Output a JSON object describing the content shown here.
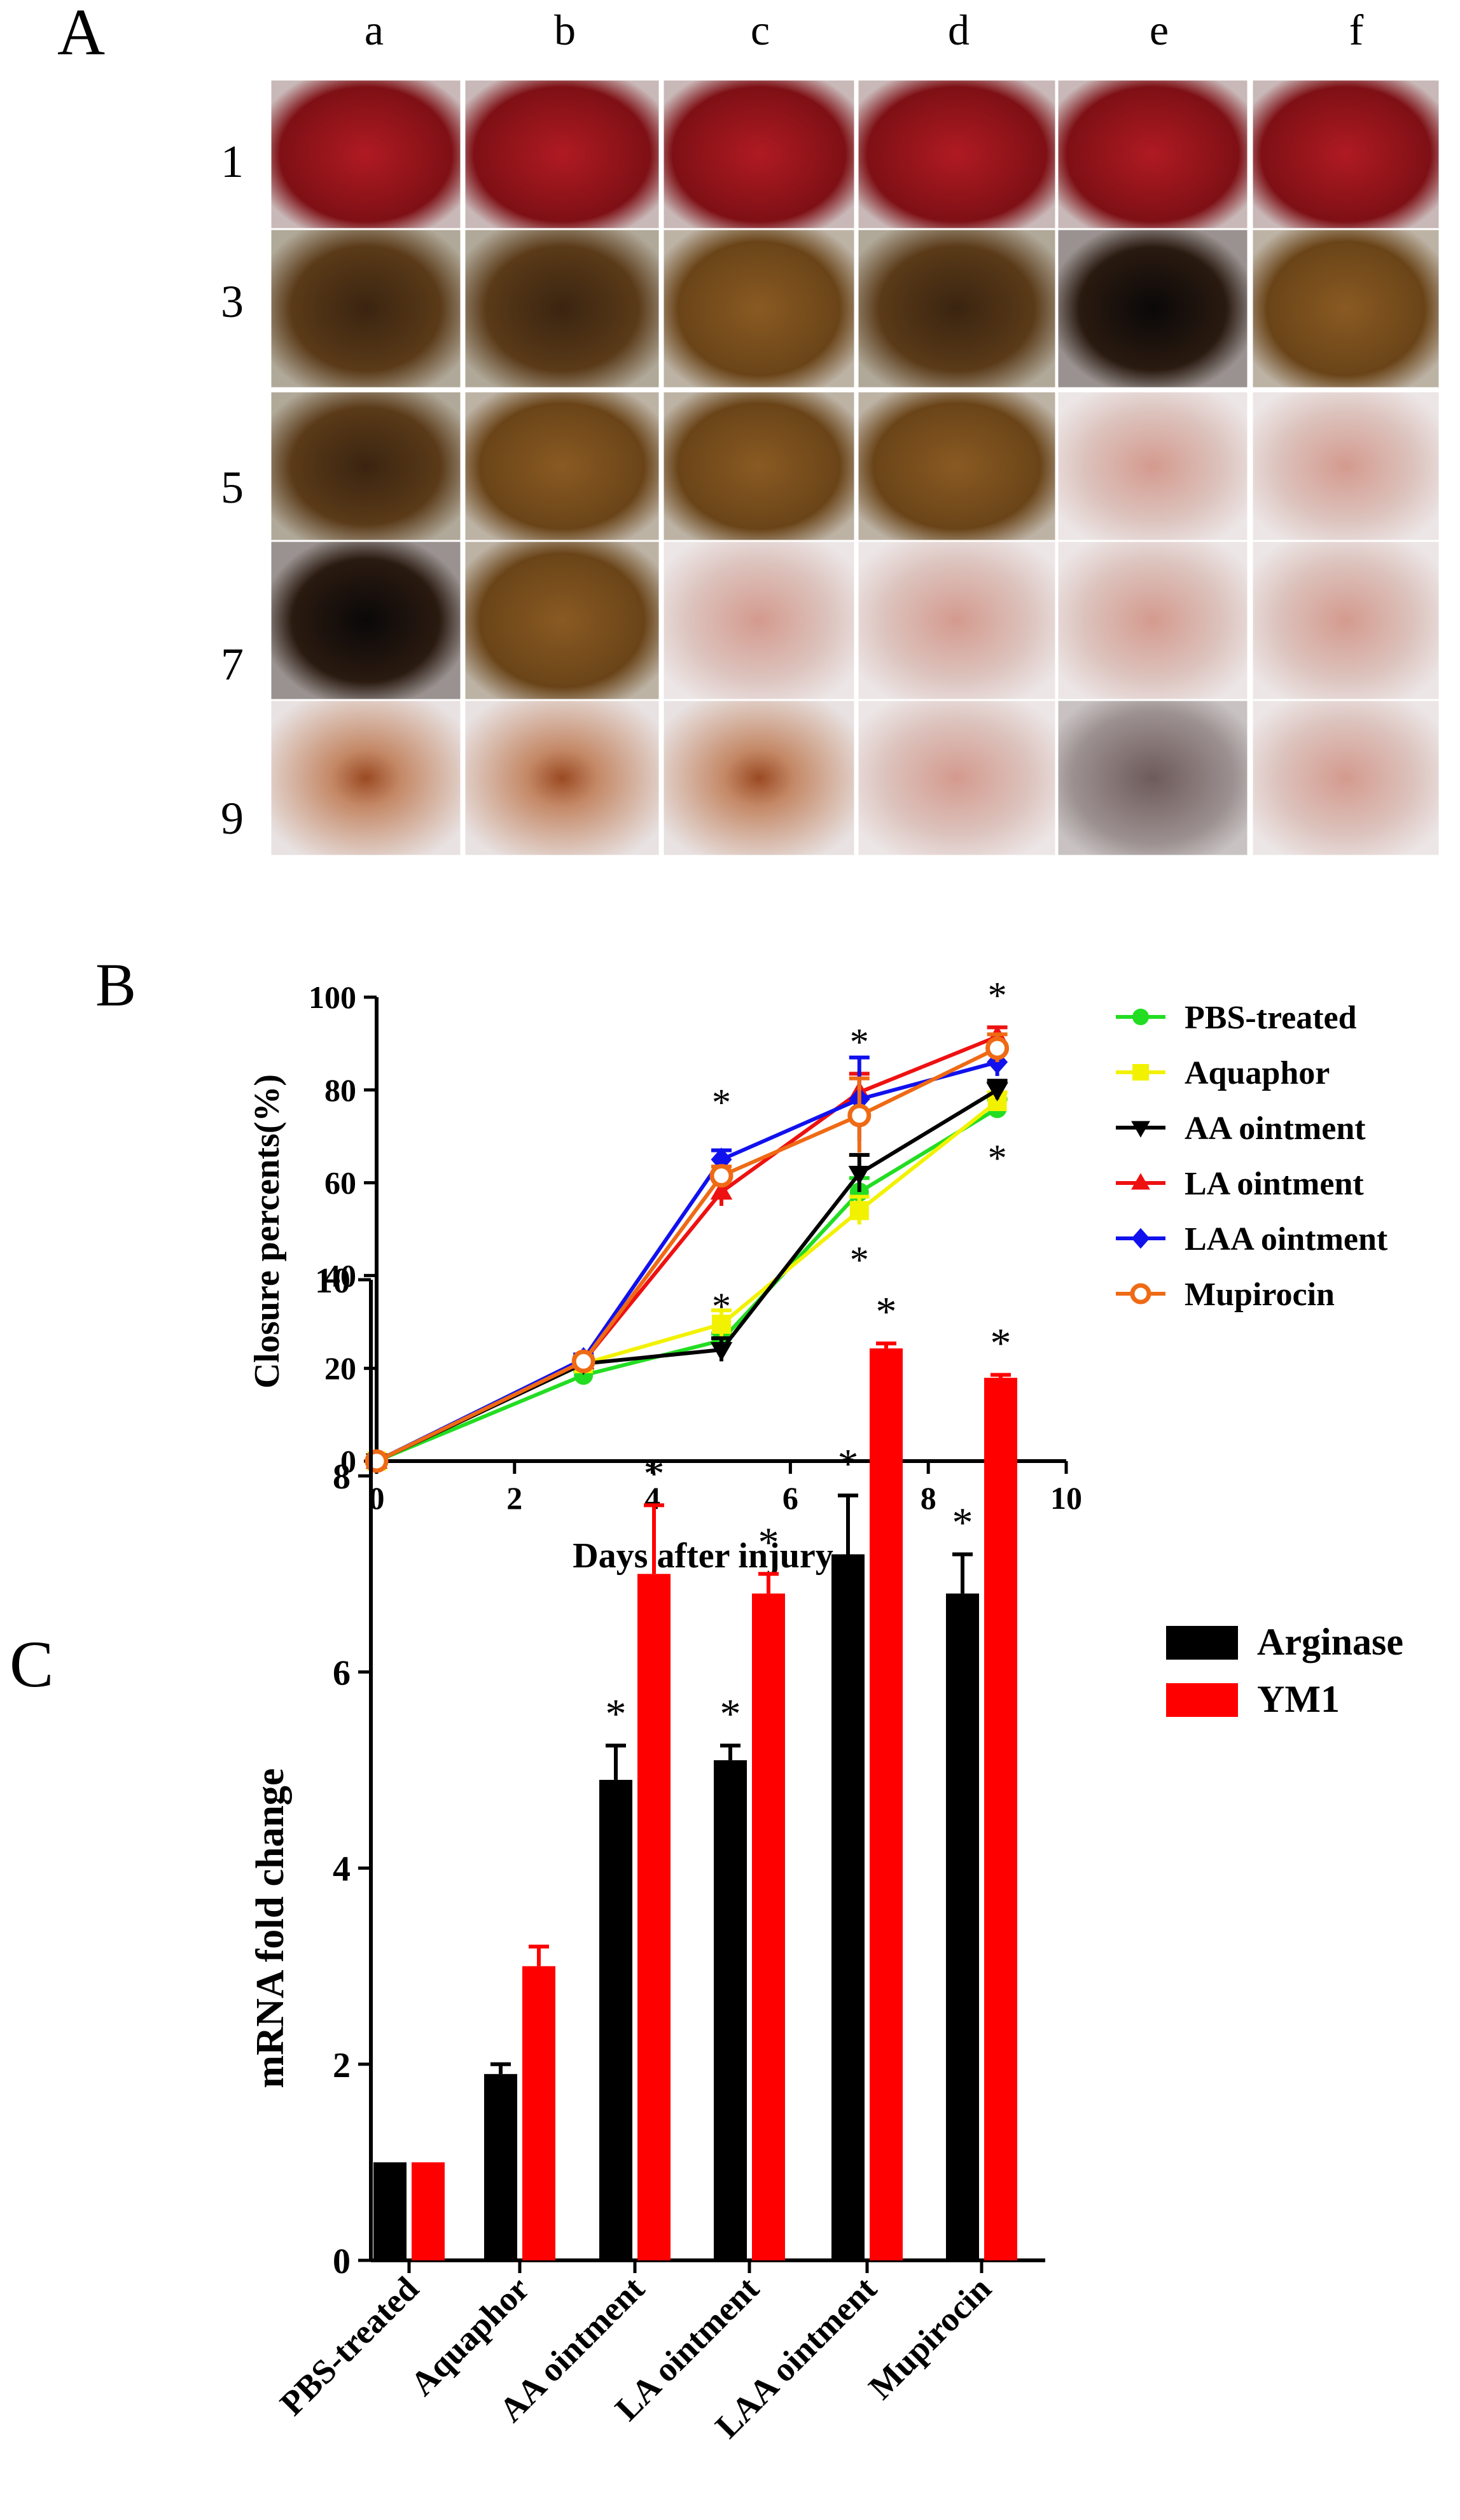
{
  "panel_a": {
    "label": "A",
    "columns": [
      "a",
      "b",
      "c",
      "d",
      "e",
      "f"
    ],
    "rows": [
      "1",
      "3",
      "5",
      "7",
      "9"
    ]
  },
  "chart_data": [
    {
      "panel": "B",
      "type": "line",
      "xlabel": "Days after injury",
      "ylabel": "Closure percents(%)",
      "xlim": [
        0,
        10
      ],
      "ylim": [
        0,
        100
      ],
      "xticks": [
        0,
        2,
        4,
        6,
        8,
        10
      ],
      "yticks": [
        0,
        20,
        40,
        60,
        80,
        100
      ],
      "x": [
        0,
        3,
        5,
        7,
        9
      ],
      "series": [
        {
          "name": "PBS-treated",
          "color": "#22dd22",
          "marker": "circle",
          "values": [
            0,
            18.5,
            26,
            58,
            76
          ],
          "errors": [
            0,
            1,
            1.5,
            3,
            2
          ]
        },
        {
          "name": "Aquaphor",
          "color": "#f2f200",
          "marker": "square",
          "values": [
            0,
            21,
            29.5,
            54,
            77.5
          ],
          "errors": [
            0,
            1,
            3,
            3,
            2
          ]
        },
        {
          "name": "AA ointment",
          "color": "#000000",
          "marker": "triangle-down",
          "values": [
            0,
            21,
            24,
            62,
            80
          ],
          "errors": [
            0,
            1,
            2.5,
            4,
            2
          ]
        },
        {
          "name": "LA ointment",
          "color": "#ee1111",
          "marker": "triangle-up",
          "values": [
            0,
            21.5,
            58,
            79.5,
            91.5
          ],
          "errors": [
            0,
            1,
            3,
            4,
            2
          ]
        },
        {
          "name": "LAA ointment",
          "color": "#1111ee",
          "marker": "diamond",
          "values": [
            0,
            22,
            65,
            78,
            86
          ],
          "errors": [
            0,
            1,
            2,
            9,
            3
          ]
        },
        {
          "name": "Mupirocin",
          "color": "#ef6a14",
          "marker": "open-circle",
          "values": [
            0,
            21.5,
            61.5,
            74.5,
            89
          ],
          "errors": [
            0,
            1,
            2,
            8,
            3
          ]
        }
      ],
      "annotations": [
        {
          "text": "*",
          "x": 5,
          "y": 78
        },
        {
          "text": "*",
          "x": 5,
          "y": 34
        },
        {
          "text": "*",
          "x": 7,
          "y": 91
        },
        {
          "text": "*",
          "x": 7,
          "y": 44
        },
        {
          "text": "*",
          "x": 9,
          "y": 101
        },
        {
          "text": "*",
          "x": 9,
          "y": 66
        }
      ]
    },
    {
      "panel": "C",
      "type": "bar",
      "ylabel": "mRNA fold change",
      "ylim": [
        0,
        10
      ],
      "yticks": [
        0,
        2,
        4,
        6,
        8,
        10
      ],
      "categories": [
        "PBS-treated",
        "Aquaphor",
        "AA ointment",
        "LA ointment",
        "LAA ointment",
        "Mupirocin"
      ],
      "series": [
        {
          "name": "Arginase",
          "color": "#000000",
          "values": [
            1.0,
            1.9,
            4.9,
            5.1,
            7.2,
            6.8
          ],
          "errors": [
            0,
            0.1,
            0.35,
            0.15,
            0.6,
            0.4
          ],
          "sig": [
            "",
            "",
            "*",
            "*",
            "*",
            "*"
          ]
        },
        {
          "name": "YM1",
          "color": "#ff0000",
          "values": [
            1.0,
            3.0,
            7.0,
            6.8,
            9.3,
            9.0
          ],
          "errors": [
            0,
            0.2,
            0.7,
            0.2,
            0.05,
            0.03
          ],
          "sig": [
            "",
            "",
            "*",
            "*",
            "*",
            "*"
          ]
        }
      ]
    }
  ]
}
